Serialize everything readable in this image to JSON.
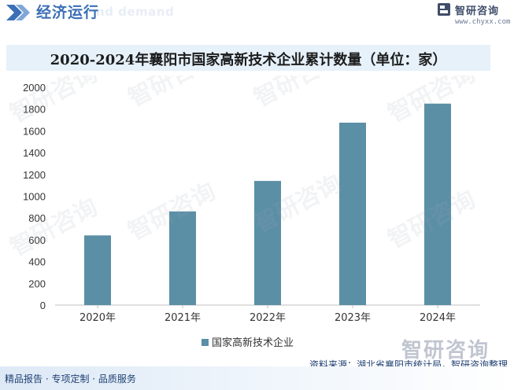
{
  "header": {
    "section_title": "经济运行",
    "section_ghost": "nd demand",
    "logo_name": "智研咨询",
    "logo_url": "www.chyxx.com"
  },
  "chart_data": {
    "type": "bar",
    "title": "2020-2024年襄阳市国家高新技术企业累计数量（单位：家）",
    "categories": [
      "2020年",
      "2021年",
      "2022年",
      "2023年",
      "2024年"
    ],
    "series": [
      {
        "name": "国家高新技术企业",
        "values": [
          640,
          860,
          1140,
          1675,
          1850
        ]
      }
    ],
    "ylim": [
      0,
      2000
    ],
    "yticks": [
      0,
      200,
      400,
      600,
      800,
      1000,
      1200,
      1400,
      1600,
      1800,
      2000
    ],
    "bar_color": "#5b8fa6",
    "grid": false,
    "legend_position": "bottom"
  },
  "source_text": "资料来源：湖北省襄阳市统计局，智研咨询整理",
  "footer_text": "精品报告 · 专项定制 · 品质服务",
  "watermark_text": "智研咨询"
}
